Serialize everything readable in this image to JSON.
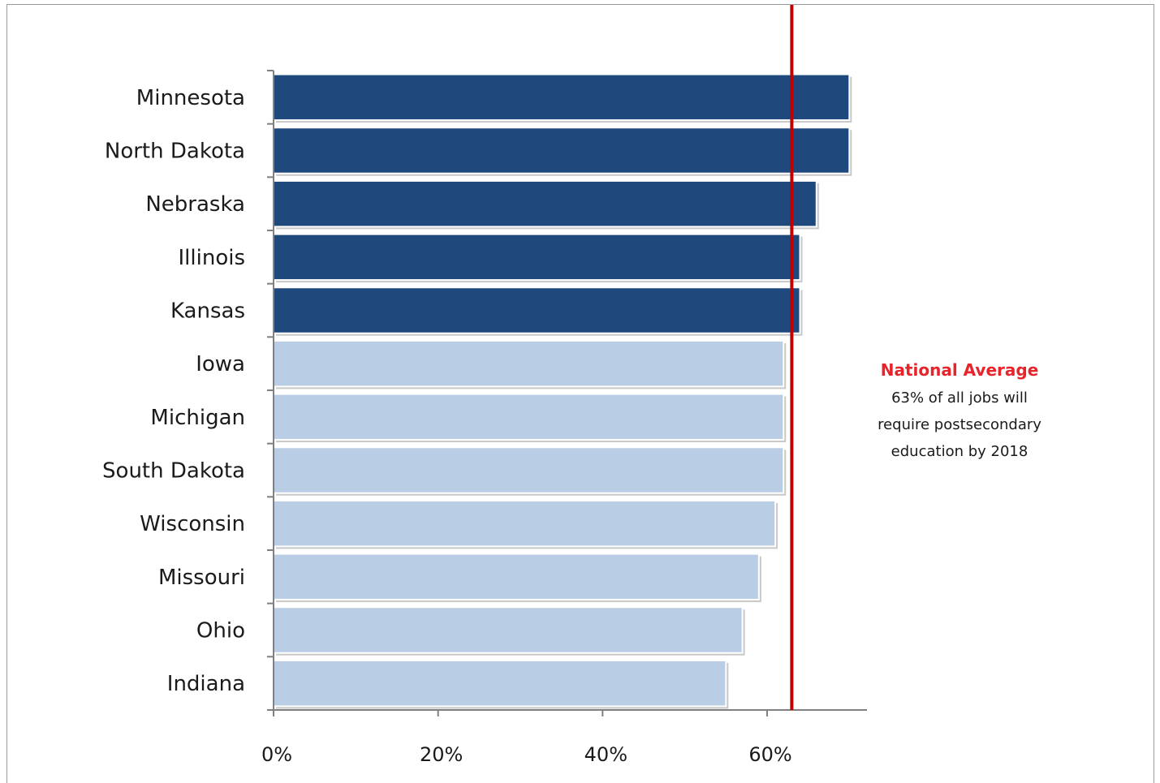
{
  "chart_data": {
    "type": "bar",
    "orientation": "horizontal",
    "categories": [
      "Minnesota",
      "North Dakota",
      "Nebraska",
      "Illinois",
      "Kansas",
      "Iowa",
      "Michigan",
      "South Dakota",
      "Wisconsin",
      "Missouri",
      "Ohio",
      "Indiana"
    ],
    "values": [
      70,
      70,
      66,
      64,
      64,
      62,
      62,
      62,
      61,
      59,
      57,
      55
    ],
    "bar_colors": [
      "#1f497d",
      "#1f497d",
      "#1f497d",
      "#1f497d",
      "#1f497d",
      "#b9cde5",
      "#b9cde5",
      "#b9cde5",
      "#b9cde5",
      "#b9cde5",
      "#b9cde5",
      "#b9cde5"
    ],
    "x_ticks": [
      "0%",
      "20%",
      "40%",
      "60%"
    ],
    "xlim": [
      0,
      72
    ],
    "grid": false,
    "reference_line": {
      "value": 63,
      "color": "#c00000"
    },
    "annotation": {
      "title": "National Average",
      "lines": [
        "63% of all jobs will",
        "require postsecondary",
        "education by 2018"
      ],
      "title_color": "#e8232a"
    }
  }
}
